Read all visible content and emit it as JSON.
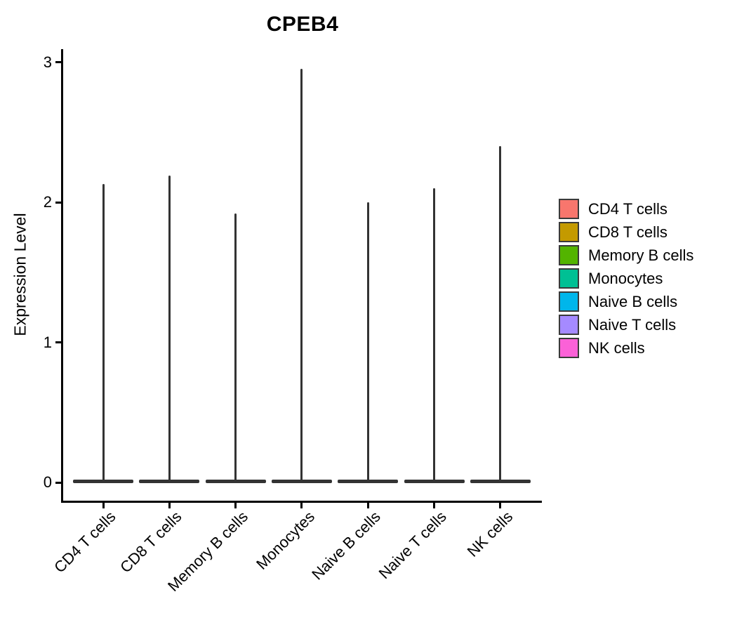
{
  "chart_data": {
    "type": "violin",
    "title": "CPEB4",
    "ylabel": "Expression Level",
    "xlabel": "",
    "ylim": [
      0,
      3
    ],
    "yticks": [
      "0",
      "1",
      "2",
      "3"
    ],
    "categories": [
      "CD4 T cells",
      "CD8 T cells",
      "Memory B cells",
      "Monocytes",
      "Naive B cells",
      "Naive T cells",
      "NK cells"
    ],
    "series": [
      {
        "name": "max expression (spike top)",
        "values": [
          2.13,
          2.19,
          1.92,
          2.95,
          2.0,
          2.1,
          2.4
        ]
      },
      {
        "name": "density mode (violin bulge)",
        "values": [
          0,
          0,
          0,
          0,
          0,
          0,
          0
        ]
      }
    ],
    "note": "All violins are collapsed: nearly all cells at expression 0 forming a wide thin base, with a narrow vertical spike rising to the maximum value.",
    "grid": false,
    "legend_position": "right",
    "legend_entries": [
      {
        "label": "CD4 T cells",
        "color": "#F8766D"
      },
      {
        "label": "CD8 T cells",
        "color": "#C49A00"
      },
      {
        "label": "Memory B cells",
        "color": "#53B400"
      },
      {
        "label": "Monocytes",
        "color": "#00C094"
      },
      {
        "label": "Naive B cells",
        "color": "#00B6EB"
      },
      {
        "label": "Naive T cells",
        "color": "#A58AFF"
      },
      {
        "label": "NK cells",
        "color": "#FB61D7"
      }
    ],
    "style": {
      "violin_outline": "#333333",
      "axis_color": "#000000",
      "background": "#FFFFFF"
    }
  }
}
